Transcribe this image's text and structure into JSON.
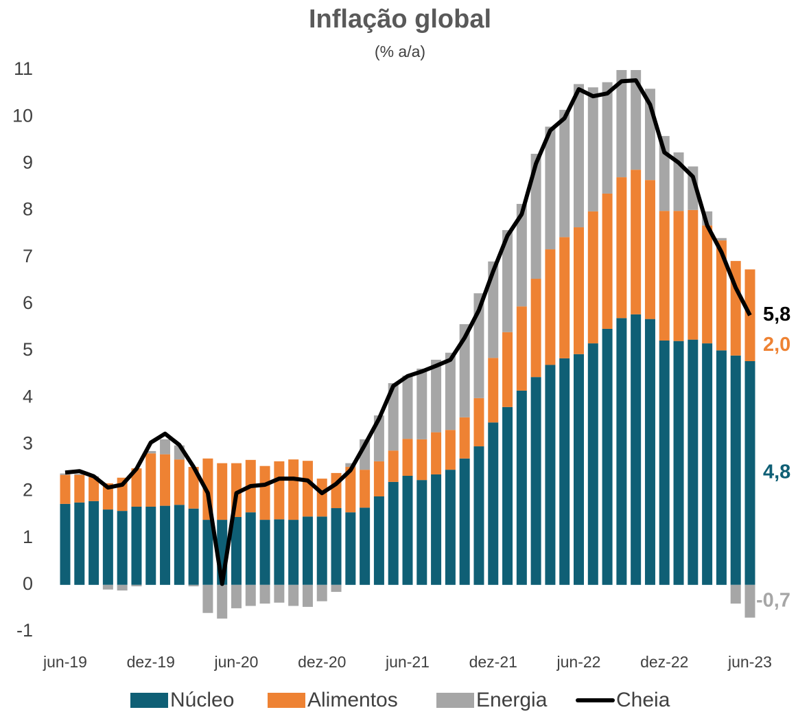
{
  "chart_data": {
    "type": "stacked-bar-line",
    "title": "Inflação global",
    "subtitle": "(% a/a)",
    "categories": [
      "jun-19",
      null,
      null,
      null,
      null,
      null,
      "dez-19",
      null,
      null,
      null,
      null,
      null,
      "jun-20",
      null,
      null,
      null,
      null,
      null,
      "dez-20",
      null,
      null,
      null,
      null,
      null,
      "jun-21",
      null,
      null,
      null,
      null,
      null,
      "dez-21",
      null,
      null,
      null,
      null,
      null,
      "jun-22",
      null,
      null,
      null,
      null,
      null,
      "dez-22",
      null,
      null,
      null,
      null,
      null,
      "jun-23"
    ],
    "series": [
      {
        "name": "Núcleo",
        "color": "#0f5f75",
        "kind": "bar",
        "values": [
          1.73,
          1.76,
          1.79,
          1.61,
          1.58,
          1.67,
          1.67,
          1.69,
          1.71,
          1.63,
          1.39,
          1.39,
          1.45,
          1.55,
          1.39,
          1.4,
          1.39,
          1.46,
          1.46,
          1.64,
          1.55,
          1.65,
          1.89,
          2.2,
          2.33,
          2.24,
          2.36,
          2.46,
          2.7,
          2.96,
          3.47,
          3.8,
          4.15,
          4.44,
          4.7,
          4.84,
          4.93,
          5.16,
          5.47,
          5.7,
          5.78,
          5.68,
          5.22,
          5.21,
          5.24,
          5.16,
          5.01,
          4.9,
          4.78
        ],
        "value_labels": [
          null,
          null,
          null,
          null,
          null,
          null,
          null,
          null,
          null,
          null,
          null,
          null,
          null,
          null,
          null,
          null,
          null,
          null,
          null,
          null,
          null,
          null,
          null,
          null,
          null,
          null,
          null,
          null,
          null,
          null,
          null,
          null,
          null,
          null,
          null,
          null,
          null,
          null,
          null,
          null,
          null,
          null,
          null,
          null,
          null,
          null,
          null,
          null,
          "4,8"
        ]
      },
      {
        "name": "Alimentos",
        "color": "#ee8233",
        "kind": "bar",
        "values": [
          0.62,
          0.59,
          0.51,
          0.56,
          0.71,
          0.82,
          1.14,
          1.1,
          0.97,
          0.89,
          1.31,
          1.21,
          1.15,
          1.12,
          1.15,
          1.24,
          1.29,
          1.19,
          0.81,
          0.75,
          0.97,
          0.81,
          0.75,
          0.67,
          0.79,
          0.87,
          0.9,
          0.85,
          0.88,
          1.03,
          1.38,
          1.6,
          1.8,
          2.1,
          2.47,
          2.59,
          2.71,
          2.82,
          2.89,
          3.01,
          3.09,
          2.97,
          2.77,
          2.78,
          2.77,
          2.52,
          2.35,
          2.02,
          1.96
        ],
        "value_labels": [
          null,
          null,
          null,
          null,
          null,
          null,
          null,
          null,
          null,
          null,
          null,
          null,
          null,
          null,
          null,
          null,
          null,
          null,
          null,
          null,
          null,
          null,
          null,
          null,
          null,
          null,
          null,
          null,
          null,
          null,
          null,
          null,
          null,
          null,
          null,
          null,
          null,
          null,
          null,
          null,
          null,
          null,
          null,
          null,
          null,
          null,
          null,
          null,
          "2,0"
        ]
      },
      {
        "name": "Energia",
        "color": "#a6a6a6",
        "kind": "bar",
        "values": [
          0.03,
          0.02,
          0.02,
          -0.1,
          -0.12,
          -0.03,
          0.05,
          0.32,
          0.3,
          -0.03,
          -0.6,
          -0.72,
          -0.5,
          -0.45,
          -0.4,
          -0.38,
          -0.45,
          -0.47,
          -0.35,
          -0.15,
          0.08,
          0.65,
          0.98,
          1.44,
          1.35,
          1.51,
          1.55,
          1.65,
          1.99,
          2.24,
          2.06,
          2.18,
          2.19,
          2.67,
          2.62,
          2.72,
          3.06,
          2.65,
          2.38,
          2.4,
          2.2,
          1.95,
          1.6,
          1.25,
          0.93,
          0.3,
          0.05,
          -0.4,
          -0.7
        ],
        "value_labels": [
          null,
          null,
          null,
          null,
          null,
          null,
          null,
          null,
          null,
          null,
          null,
          null,
          null,
          null,
          null,
          null,
          null,
          null,
          null,
          null,
          null,
          null,
          null,
          null,
          null,
          null,
          null,
          null,
          null,
          null,
          null,
          null,
          null,
          null,
          null,
          null,
          null,
          null,
          null,
          null,
          null,
          null,
          null,
          null,
          null,
          null,
          null,
          null,
          "-0,7"
        ]
      },
      {
        "name": "Cheia",
        "color": "#000000",
        "kind": "line",
        "values": [
          2.4,
          2.43,
          2.32,
          2.08,
          2.14,
          2.48,
          3.04,
          3.23,
          2.99,
          2.52,
          1.96,
          0.02,
          1.96,
          2.11,
          2.14,
          2.27,
          2.27,
          2.23,
          1.96,
          2.16,
          2.45,
          2.99,
          3.55,
          4.25,
          4.46,
          4.56,
          4.68,
          4.81,
          5.28,
          5.87,
          6.7,
          7.46,
          7.92,
          9.0,
          9.71,
          9.97,
          10.59,
          10.44,
          10.5,
          10.76,
          10.78,
          10.26,
          9.24,
          9.02,
          8.72,
          7.68,
          7.11,
          6.35,
          5.76
        ],
        "value_labels": [
          null,
          null,
          null,
          null,
          null,
          null,
          null,
          null,
          null,
          null,
          null,
          null,
          null,
          null,
          null,
          null,
          null,
          null,
          null,
          null,
          null,
          null,
          null,
          null,
          null,
          null,
          null,
          null,
          null,
          null,
          null,
          null,
          null,
          null,
          null,
          null,
          null,
          null,
          null,
          null,
          null,
          null,
          null,
          null,
          null,
          null,
          null,
          null,
          "5,8"
        ]
      }
    ],
    "ylim": [
      -1,
      11
    ],
    "yticks": [
      -1,
      0,
      1,
      2,
      3,
      4,
      5,
      6,
      7,
      8,
      9,
      10,
      11
    ],
    "grid": false,
    "legend": "bottom"
  }
}
